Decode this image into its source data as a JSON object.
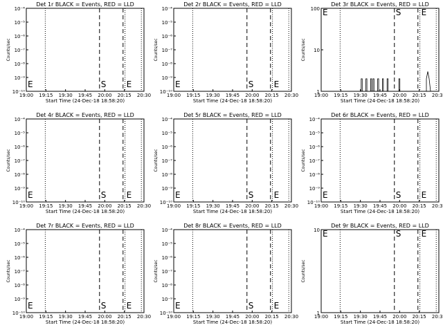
{
  "chart_data": [
    {
      "type": "line",
      "title": "Det 1r BLACK = Events, RED = LLD",
      "xlabel": "Start Time (24-Dec-18 18:58:20)",
      "ylabel": "Counts/sec",
      "yscale": "log",
      "ylim": [
        1e-10,
        0.0001
      ],
      "ytick_labels": [
        "10⁻¹⁰",
        "10⁻⁹",
        "10⁻⁸",
        "10⁻⁷",
        "10⁻⁶",
        "10⁻⁵",
        "10⁻⁴"
      ],
      "x_ticks": [
        "19:00",
        "19:15",
        "19:30",
        "19:45",
        "20:00",
        "20:15",
        "20:30"
      ],
      "series": [],
      "grid": false
    },
    {
      "type": "line",
      "title": "Det 2r BLACK = Events, RED = LLD",
      "xlabel": "Start Time (24-Dec-18 18:58:20)",
      "ylabel": "Counts/sec",
      "yscale": "log",
      "ylim": [
        1e-10,
        0.0001
      ],
      "ytick_labels": [
        "10⁻¹⁰",
        "10⁻⁹",
        "10⁻⁸",
        "10⁻⁷",
        "10⁻⁶",
        "10⁻⁵",
        "10⁻⁴"
      ],
      "x_ticks": [
        "19:00",
        "19:15",
        "19:30",
        "19:45",
        "20:00",
        "20:15",
        "20:30"
      ],
      "series": [],
      "grid": false
    },
    {
      "type": "line",
      "title": "Det 3r BLACK = Events, RED = LLD",
      "xlabel": "Start Time (24-Dec-18 18:58:20)",
      "ylabel": "Counts/sec",
      "yscale": "log",
      "ylim": [
        1,
        100
      ],
      "ytick_labels": [
        "1",
        "10",
        "100"
      ],
      "x_ticks": [
        "19:00",
        "19:15",
        "19:30",
        "19:45",
        "20:00",
        "20:15",
        "20:30"
      ],
      "series": [
        {
          "values": "sparse spikes of 2 counts/sec between 19:15 and 20:10, peak ~3 near 20:17"
        }
      ],
      "grid": false
    },
    {
      "type": "line",
      "title": "Det 4r BLACK = Events, RED = LLD",
      "xlabel": "Start Time (24-Dec-18 18:58:20)",
      "ylabel": "Counts/sec",
      "yscale": "log",
      "ylim": [
        1e-10,
        0.0001
      ],
      "ytick_labels": [
        "10⁻¹⁰",
        "10⁻⁹",
        "10⁻⁸",
        "10⁻⁷",
        "10⁻⁶",
        "10⁻⁵",
        "10⁻⁴"
      ],
      "x_ticks": [
        "19:00",
        "19:15",
        "19:30",
        "19:45",
        "20:00",
        "20:15",
        "20:30"
      ],
      "series": [],
      "grid": false
    },
    {
      "type": "line",
      "title": "Det 5r BLACK = Events, RED = LLD",
      "xlabel": "Start Time (24-Dec-18 18:58:20)",
      "ylabel": "Counts/sec",
      "yscale": "log",
      "ylim": [
        1e-10,
        0.0001
      ],
      "ytick_labels": [
        "10⁻¹⁰",
        "10⁻⁹",
        "10⁻⁸",
        "10⁻⁷",
        "10⁻⁶",
        "10⁻⁵",
        "10⁻⁴"
      ],
      "x_ticks": [
        "19:00",
        "19:15",
        "19:30",
        "19:45",
        "20:00",
        "20:15",
        "20:30"
      ],
      "series": [],
      "grid": false
    },
    {
      "type": "line",
      "title": "Det 6r BLACK = Events, RED = LLD",
      "xlabel": "Start Time (24-Dec-18 18:58:20)",
      "ylabel": "Counts/sec",
      "yscale": "log",
      "ylim": [
        1e-10,
        0.0001
      ],
      "ytick_labels": [
        "10⁻¹⁰",
        "10⁻⁹",
        "10⁻⁸",
        "10⁻⁷",
        "10⁻⁶",
        "10⁻⁵",
        "10⁻⁴"
      ],
      "x_ticks": [
        "19:00",
        "19:15",
        "19:30",
        "19:45",
        "20:00",
        "20:15",
        "20:30"
      ],
      "series": [],
      "grid": false
    },
    {
      "type": "line",
      "title": "Det 7r BLACK = Events, RED = LLD",
      "xlabel": "Start Time (24-Dec-18 18:58:20)",
      "ylabel": "Counts/sec",
      "yscale": "log",
      "ylim": [
        1e-10,
        0.0001
      ],
      "ytick_labels": [
        "10⁻¹⁰",
        "10⁻⁹",
        "10⁻⁸",
        "10⁻⁷",
        "10⁻⁶",
        "10⁻⁵",
        "10⁻⁴"
      ],
      "x_ticks": [
        "19:00",
        "19:15",
        "19:30",
        "19:45",
        "20:00",
        "20:15",
        "20:30"
      ],
      "series": [],
      "grid": false
    },
    {
      "type": "line",
      "title": "Det 8r BLACK = Events, RED = LLD",
      "xlabel": "Start Time (24-Dec-18 18:58:20)",
      "ylabel": "Counts/sec",
      "yscale": "log",
      "ylim": [
        1e-10,
        0.0001
      ],
      "ytick_labels": [
        "10⁻¹⁰",
        "10⁻⁹",
        "10⁻⁸",
        "10⁻⁷",
        "10⁻⁶",
        "10⁻⁵",
        "10⁻⁴"
      ],
      "x_ticks": [
        "19:00",
        "19:15",
        "19:30",
        "19:45",
        "20:00",
        "20:15",
        "20:30"
      ],
      "series": [],
      "grid": false
    },
    {
      "type": "line",
      "title": "Det 9r BLACK = Events, RED = LLD",
      "xlabel": "Start Time (24-Dec-18 18:58:20)",
      "ylabel": "Counts/sec",
      "yscale": "log",
      "ylim": [
        1,
        10
      ],
      "ytick_labels": [
        "1",
        "10"
      ],
      "x_ticks": [
        "19:00",
        "19:15",
        "19:30",
        "19:45",
        "20:00",
        "20:15",
        "20:30"
      ],
      "series": [],
      "grid": false
    }
  ],
  "markers": {
    "start": "S",
    "end": "E"
  },
  "colors": {
    "axes": "#000000",
    "background": "#ffffff"
  }
}
